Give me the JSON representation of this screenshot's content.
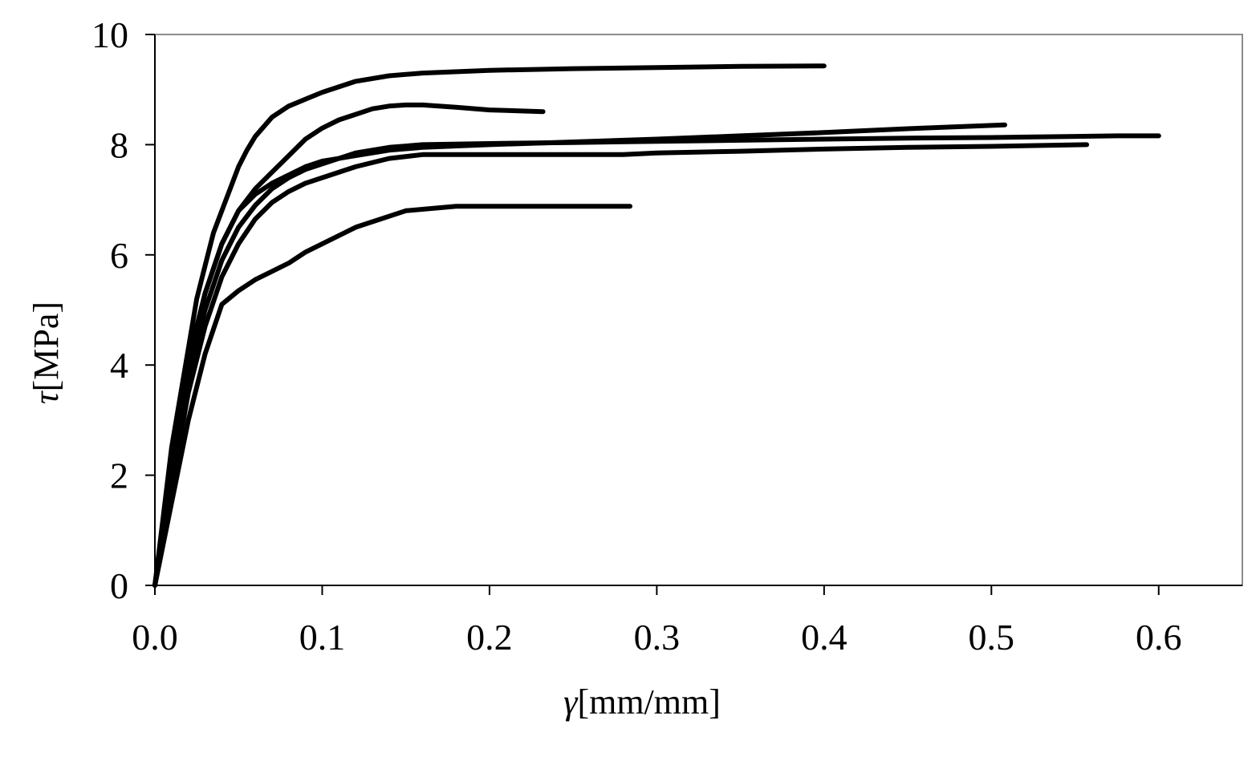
{
  "chart_data": {
    "type": "line",
    "xlabel_symbol": "γ",
    "xlabel_unit": "[mm/mm]",
    "ylabel_symbol": "τ",
    "ylabel_unit": "[MPa]",
    "xlim": [
      0,
      0.65
    ],
    "ylim": [
      0,
      10
    ],
    "xticks": [
      0.0,
      0.1,
      0.2,
      0.3,
      0.4,
      0.5,
      0.6
    ],
    "xtick_labels": [
      "0.0",
      "0.1",
      "0.2",
      "0.3",
      "0.4",
      "0.5",
      "0.6"
    ],
    "yticks": [
      0,
      2,
      4,
      6,
      8,
      10
    ],
    "ytick_labels": [
      "0",
      "2",
      "4",
      "6",
      "8",
      "10"
    ],
    "grid": false,
    "line_color": "#000000",
    "series": [
      {
        "x": [
          0,
          0.01,
          0.02,
          0.025,
          0.03,
          0.035,
          0.04,
          0.045,
          0.05,
          0.055,
          0.06,
          0.07,
          0.08,
          0.1,
          0.12,
          0.14,
          0.16,
          0.2,
          0.25,
          0.3,
          0.35,
          0.4
        ],
        "y": [
          0,
          2.5,
          4.3,
          5.2,
          5.8,
          6.4,
          6.8,
          7.2,
          7.6,
          7.9,
          8.15,
          8.5,
          8.7,
          8.95,
          9.15,
          9.25,
          9.3,
          9.35,
          9.38,
          9.4,
          9.42,
          9.43
        ]
      },
      {
        "x": [
          0,
          0.01,
          0.02,
          0.03,
          0.04,
          0.05,
          0.06,
          0.07,
          0.08,
          0.09,
          0.1,
          0.11,
          0.12,
          0.13,
          0.14,
          0.15,
          0.16,
          0.18,
          0.2,
          0.232
        ],
        "y": [
          0,
          2.3,
          4.1,
          5.3,
          6.2,
          6.8,
          7.2,
          7.5,
          7.8,
          8.1,
          8.3,
          8.45,
          8.55,
          8.65,
          8.7,
          8.72,
          8.72,
          8.68,
          8.63,
          8.6
        ]
      },
      {
        "x": [
          0,
          0.01,
          0.02,
          0.03,
          0.04,
          0.05,
          0.06,
          0.07,
          0.08,
          0.09,
          0.1,
          0.11,
          0.12,
          0.14,
          0.16,
          0.2,
          0.25,
          0.3,
          0.35,
          0.4,
          0.45,
          0.508
        ],
        "y": [
          0,
          2.2,
          4.0,
          5.3,
          6.2,
          6.8,
          7.1,
          7.3,
          7.45,
          7.6,
          7.7,
          7.75,
          7.8,
          7.9,
          7.95,
          8.0,
          8.05,
          8.1,
          8.16,
          8.22,
          8.29,
          8.36
        ]
      },
      {
        "x": [
          0,
          0.01,
          0.02,
          0.03,
          0.04,
          0.05,
          0.06,
          0.07,
          0.08,
          0.09,
          0.1,
          0.12,
          0.14,
          0.16,
          0.2,
          0.25,
          0.3,
          0.35,
          0.4,
          0.45,
          0.5,
          0.55,
          0.575,
          0.6
        ],
        "y": [
          0,
          2.0,
          3.8,
          5.0,
          5.9,
          6.5,
          6.9,
          7.2,
          7.4,
          7.55,
          7.65,
          7.85,
          7.95,
          8.0,
          8.02,
          8.04,
          8.06,
          8.08,
          8.1,
          8.12,
          8.13,
          8.15,
          8.16,
          8.16
        ]
      },
      {
        "x": [
          0,
          0.01,
          0.02,
          0.03,
          0.04,
          0.05,
          0.06,
          0.07,
          0.08,
          0.09,
          0.1,
          0.12,
          0.14,
          0.16,
          0.2,
          0.28,
          0.3,
          0.35,
          0.4,
          0.45,
          0.5,
          0.557
        ],
        "y": [
          0,
          1.8,
          3.5,
          4.7,
          5.6,
          6.2,
          6.65,
          6.95,
          7.15,
          7.3,
          7.4,
          7.6,
          7.75,
          7.82,
          7.82,
          7.82,
          7.85,
          7.88,
          7.92,
          7.95,
          7.97,
          8.0
        ]
      },
      {
        "x": [
          0,
          0.01,
          0.02,
          0.03,
          0.04,
          0.05,
          0.06,
          0.07,
          0.08,
          0.09,
          0.1,
          0.12,
          0.15,
          0.18,
          0.22,
          0.26,
          0.284
        ],
        "y": [
          0,
          1.5,
          3.0,
          4.2,
          5.1,
          5.35,
          5.55,
          5.7,
          5.85,
          6.05,
          6.2,
          6.5,
          6.8,
          6.88,
          6.88,
          6.88,
          6.88
        ]
      }
    ]
  }
}
